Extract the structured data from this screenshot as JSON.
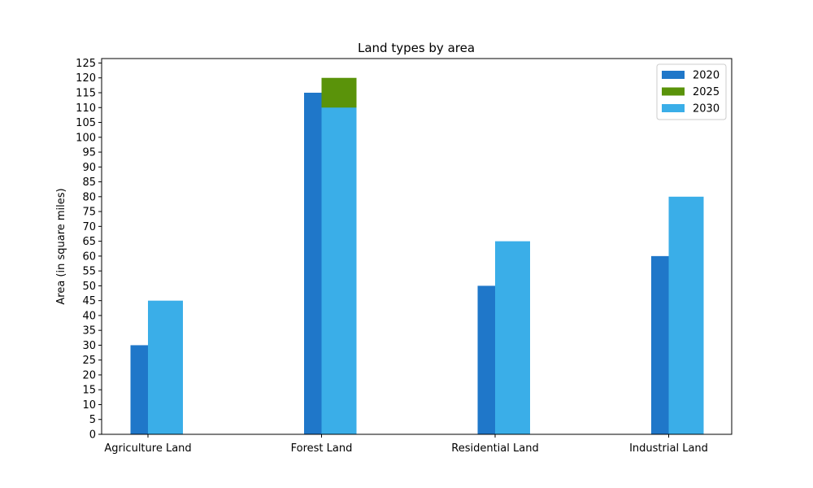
{
  "chart_data": {
    "type": "bar",
    "title": "Land types by area",
    "xlabel": "",
    "ylabel": "Area (in square miles)",
    "categories": [
      "Agriculture Land",
      "Forest Land",
      "Residential Land",
      "Industrial Land"
    ],
    "series": [
      {
        "name": "2020",
        "values": [
          30,
          115,
          50,
          60
        ],
        "color": "#1f77c9"
      },
      {
        "name": "2025",
        "values": [
          null,
          120,
          null,
          null
        ],
        "color": "#5a930a"
      },
      {
        "name": "2030",
        "values": [
          45,
          110,
          65,
          80
        ],
        "color": "#3aaee8"
      }
    ],
    "ylim": [
      0,
      126.5
    ],
    "yticks": [
      0,
      5,
      10,
      15,
      20,
      25,
      30,
      35,
      40,
      45,
      50,
      55,
      60,
      65,
      70,
      75,
      80,
      85,
      90,
      95,
      100,
      105,
      110,
      115,
      120,
      125
    ],
    "grid": false,
    "legend_position": "top-right"
  }
}
